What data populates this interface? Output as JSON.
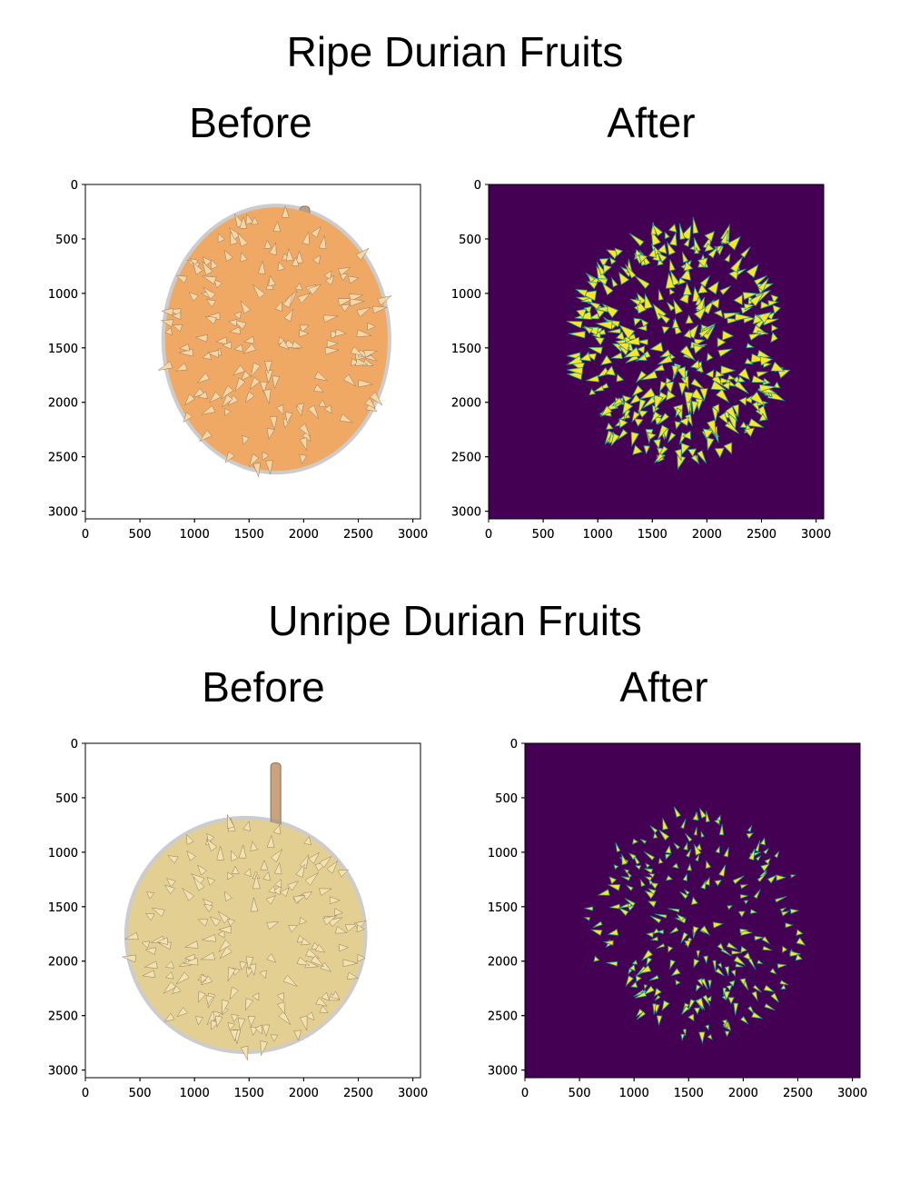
{
  "sections": [
    {
      "title": "Ripe Durian Fruits",
      "panels": [
        {
          "title": "Before",
          "kind": "photo-ripe"
        },
        {
          "title": "After",
          "kind": "mask-ripe"
        }
      ]
    },
    {
      "title": "Unripe Durian Fruits",
      "panels": [
        {
          "title": "Before",
          "kind": "photo-unripe"
        },
        {
          "title": "After",
          "kind": "mask-unripe"
        }
      ]
    }
  ],
  "colors": {
    "mask_background": "#440154",
    "mask_foreground": "#fde725",
    "mask_edge": "#21918c",
    "ripe_fruit": "#f0a865",
    "ripe_spike": "#f8d8a8",
    "unripe_fruit": "#e3cf92",
    "unripe_spike": "#f2e4b2"
  },
  "chart_data": [
    {
      "type": "heatmap",
      "title": "Before",
      "group": "Ripe Durian Fruits",
      "xlim": [
        0,
        3070
      ],
      "ylim": [
        3070,
        0
      ],
      "xticks": [
        0,
        500,
        1000,
        1500,
        2000,
        2500,
        3000
      ],
      "yticks": [
        0,
        500,
        1000,
        1500,
        2000,
        2500,
        3000
      ]
    },
    {
      "type": "heatmap",
      "title": "After",
      "group": "Ripe Durian Fruits",
      "xlim": [
        0,
        3070
      ],
      "ylim": [
        3070,
        0
      ],
      "xticks": [
        0,
        500,
        1000,
        1500,
        2000,
        2500,
        3000
      ],
      "yticks": [
        0,
        500,
        1000,
        1500,
        2000,
        2500,
        3000
      ]
    },
    {
      "type": "heatmap",
      "title": "Before",
      "group": "Unripe Durian Fruits",
      "xlim": [
        0,
        3070
      ],
      "ylim": [
        3070,
        0
      ],
      "xticks": [
        0,
        500,
        1000,
        1500,
        2000,
        2500,
        3000
      ],
      "yticks": [
        0,
        500,
        1000,
        1500,
        2000,
        2500,
        3000
      ]
    },
    {
      "type": "heatmap",
      "title": "After",
      "group": "Unripe Durian Fruits",
      "xlim": [
        0,
        3070
      ],
      "ylim": [
        3070,
        0
      ],
      "xticks": [
        0,
        500,
        1000,
        1500,
        2000,
        2500,
        3000
      ],
      "yticks": [
        0,
        500,
        1000,
        1500,
        2000,
        2500,
        3000
      ]
    }
  ]
}
